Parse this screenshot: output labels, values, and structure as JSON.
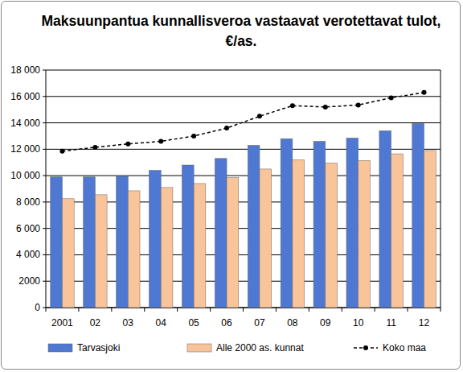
{
  "chart_data": {
    "type": "bar",
    "title": "Maksuunpantua kunnallisveroa vastaavat verotettavat tulot, €/as.",
    "categories": [
      "2001",
      "02",
      "03",
      "04",
      "05",
      "06",
      "07",
      "08",
      "09",
      "10",
      "11",
      "12"
    ],
    "series": [
      {
        "name": "Tarvasjoki",
        "color": "#4f78d2",
        "type": "bar",
        "values": [
          9900,
          9900,
          9950,
          10400,
          10800,
          11300,
          12300,
          12800,
          12600,
          12850,
          13400,
          13950
        ]
      },
      {
        "name": "Alle 2000 as. kunnat",
        "color": "#fac49a",
        "type": "bar",
        "values": [
          8250,
          8550,
          8850,
          9100,
          9400,
          9850,
          10500,
          11200,
          10950,
          11150,
          11650,
          11900
        ]
      },
      {
        "name": "Koko maa",
        "color": "#000000",
        "type": "line",
        "marker": "circle",
        "line_style": "dashed",
        "values": [
          11850,
          12150,
          12400,
          12600,
          13000,
          13600,
          14500,
          15300,
          15200,
          15350,
          15900,
          16300
        ]
      }
    ],
    "ylim": [
      0,
      18000
    ],
    "yticks": [
      0,
      2000,
      {
        "value": 4000,
        "label": "4 000"
      },
      {
        "value": 6000,
        "label": "6 000"
      },
      {
        "value": 8000,
        "label": "8 000"
      },
      {
        "value": 10000,
        "label": "10 000"
      },
      {
        "value": 12000,
        "label": "12 000"
      },
      {
        "value": 14000,
        "label": "14 000"
      },
      {
        "value": 16000,
        "label": "16 000"
      },
      {
        "value": 18000,
        "label": "18 000"
      }
    ],
    "grid": true,
    "legend": "bottom"
  }
}
